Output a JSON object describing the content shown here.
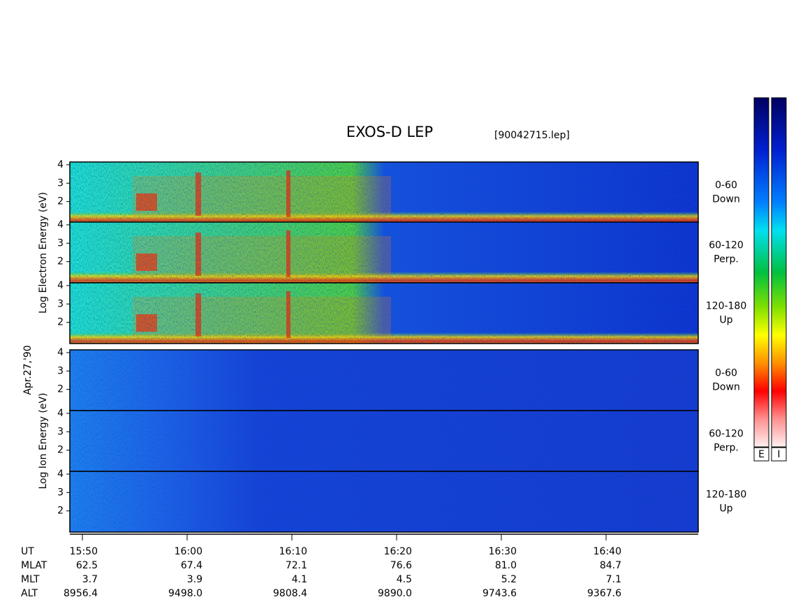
{
  "chart_data": {
    "type": "spectrogram",
    "title": "EXOS-D LEP",
    "subtitle": "[90042715.lep]",
    "date": "Apr.27,'90",
    "xlim": [
      948.8,
      1008.8
    ],
    "xticks": [
      {
        "value": 950,
        "label": "15:50"
      },
      {
        "value": 960,
        "label": "16:00"
      },
      {
        "value": 970,
        "label": "16:10"
      },
      {
        "value": 980,
        "label": "16:20"
      },
      {
        "value": 990,
        "label": "16:30"
      },
      {
        "value": 1000,
        "label": "16:40"
      }
    ],
    "ylim": [
      0.85,
      4.15
    ],
    "yticks": [
      2,
      3,
      4
    ],
    "groups": [
      {
        "label": "Log Electron Energy (eV)",
        "panels": [
          {
            "range": "0-60",
            "direction": "Down"
          },
          {
            "range": "60-120",
            "direction": "Perp."
          },
          {
            "range": "120-180",
            "direction": "Up"
          }
        ]
      },
      {
        "label": "Log Ion Energy (eV)",
        "panels": [
          {
            "range": "0-60",
            "direction": "Down"
          },
          {
            "range": "60-120",
            "direction": "Perp."
          },
          {
            "range": "120-180",
            "direction": "Up"
          }
        ]
      }
    ],
    "orbit": {
      "time_label": "UT",
      "rows": [
        {
          "name": "MLAT",
          "values": [
            "62.5",
            "67.4",
            "72.1",
            "76.6",
            "81.0",
            "84.7"
          ]
        },
        {
          "name": "MLT",
          "values": [
            "3.7",
            "3.9",
            "4.1",
            "4.5",
            "5.2",
            "7.1"
          ]
        },
        {
          "name": "ALT",
          "values": [
            "8956.4",
            "9498.0",
            "9808.4",
            "9890.0",
            "9743.6",
            "9367.6"
          ]
        }
      ]
    },
    "colorbars": [
      "E",
      "I"
    ]
  }
}
